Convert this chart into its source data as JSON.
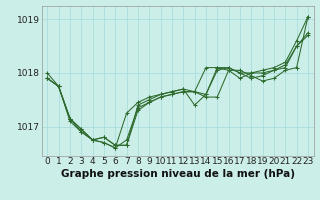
{
  "title": "Graphe pression niveau de la mer (hPa)",
  "bg_color": "#cceee8",
  "plot_bg_color": "#cceee8",
  "grid_color": "#aadddd",
  "line_color": "#2d6a2d",
  "series": [
    [
      1017.9,
      1017.75,
      1017.15,
      1016.95,
      1016.75,
      1016.8,
      1016.65,
      1016.65,
      1017.3,
      1017.45,
      1017.55,
      1017.6,
      1017.65,
      1017.65,
      1017.55,
      1017.55,
      1018.05,
      1018.05,
      1017.95,
      1017.85,
      1017.9,
      1018.05,
      1018.1,
      1019.05
    ],
    [
      1018.0,
      1017.75,
      1017.15,
      1016.95,
      1016.75,
      1016.7,
      1016.6,
      1017.25,
      1017.45,
      1017.55,
      1017.6,
      1017.65,
      1017.7,
      1017.4,
      1017.6,
      1018.1,
      1018.1,
      1018.0,
      1018.0,
      1018.0,
      1018.05,
      1018.15,
      1018.5,
      1018.7
    ],
    [
      1017.9,
      1017.75,
      1017.1,
      1016.9,
      1016.75,
      1016.8,
      1016.65,
      1016.65,
      1017.4,
      1017.5,
      1017.6,
      1017.65,
      1017.7,
      1017.65,
      1018.1,
      1018.1,
      1018.05,
      1017.9,
      1018.0,
      1018.05,
      1018.1,
      1018.2,
      1018.6,
      1019.05
    ],
    [
      1017.9,
      1017.75,
      1017.15,
      1016.9,
      1016.75,
      1016.7,
      1016.6,
      1016.75,
      1017.35,
      1017.45,
      1017.55,
      1017.6,
      1017.65,
      1017.65,
      1017.6,
      1018.05,
      1018.1,
      1018.0,
      1017.9,
      1017.95,
      1018.05,
      1018.1,
      1018.5,
      1018.75
    ]
  ],
  "xlim": [
    -0.5,
    23.5
  ],
  "ylim": [
    1016.45,
    1019.25
  ],
  "yticks": [
    1017,
    1018,
    1019
  ],
  "xticks": [
    0,
    1,
    2,
    3,
    4,
    5,
    6,
    7,
    8,
    9,
    10,
    11,
    12,
    13,
    14,
    15,
    16,
    17,
    18,
    19,
    20,
    21,
    22,
    23
  ],
  "tick_fontsize": 6.5,
  "title_fontsize": 7.5,
  "marker_size": 2.5,
  "line_width": 0.75
}
